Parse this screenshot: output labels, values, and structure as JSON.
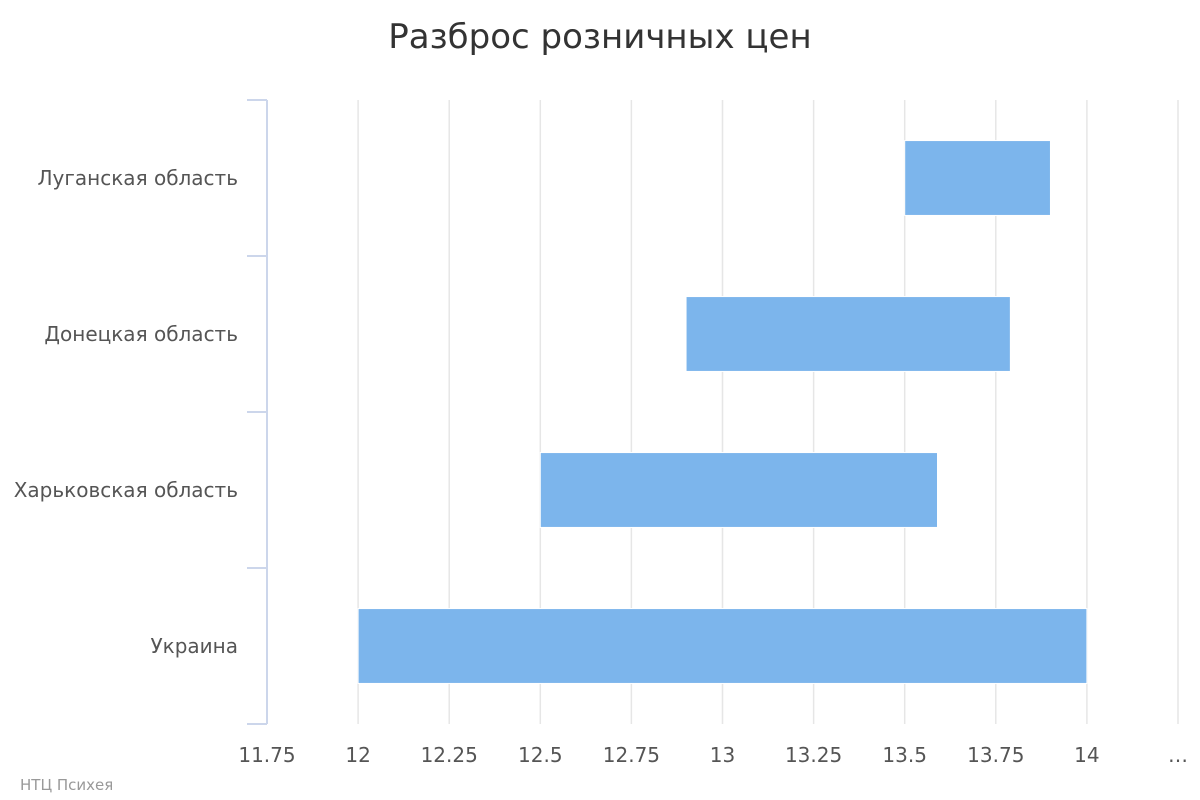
{
  "chart_data": {
    "type": "bar",
    "orientation": "horizontal",
    "chart_subtype": "columnrange",
    "title": "Разброс розничных цен",
    "categories": [
      "Луганская область",
      "Донецкая область",
      "Харьковская область",
      "Украина"
    ],
    "series": [
      {
        "ranges": [
          [
            13.5,
            13.9
          ],
          [
            12.9,
            13.79
          ],
          [
            12.5,
            13.59
          ],
          [
            12.0,
            14.0
          ]
        ]
      }
    ],
    "xlim": [
      11.75,
      14.25
    ],
    "x_ticks": [
      "11.75",
      "12",
      "12.25",
      "12.5",
      "12.75",
      "13",
      "13.25",
      "13.5",
      "13.75",
      "14",
      "…"
    ],
    "grid": true,
    "bar_color": "#7cb5ec",
    "credits": "НТЦ Психея"
  }
}
